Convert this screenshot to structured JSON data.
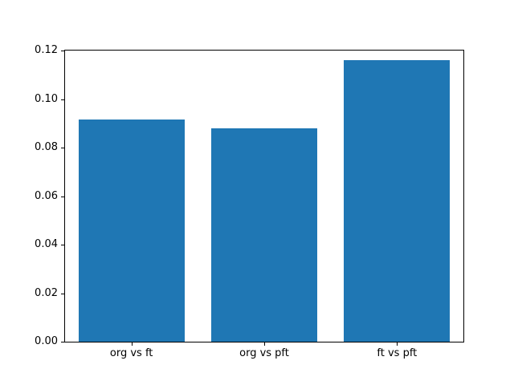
{
  "chart_data": {
    "type": "bar",
    "categories": [
      "org vs ft",
      "org vs pft",
      "ft vs pft"
    ],
    "values": [
      0.0915,
      0.0878,
      0.116
    ],
    "title": "",
    "xlabel": "",
    "ylabel": "",
    "ylim": [
      0,
      0.12
    ],
    "yticks": [
      0.0,
      0.02,
      0.04,
      0.06,
      0.08,
      0.1,
      0.12
    ],
    "ytick_labels": [
      "0.00",
      "0.02",
      "0.04",
      "0.06",
      "0.08",
      "0.10",
      "0.12"
    ],
    "bar_color": "#1f77b4",
    "bar_width_fraction": 0.8,
    "grid": false,
    "legend_position": null
  }
}
